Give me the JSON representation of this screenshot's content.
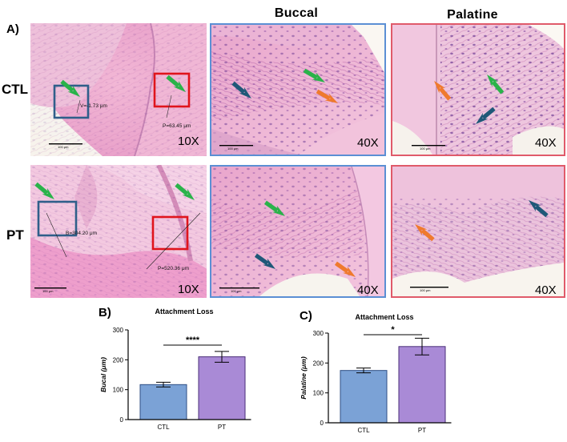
{
  "figure": {
    "panel_a_label": "A)",
    "panel_b_label": "B)",
    "panel_c_label": "C)",
    "col_titles": [
      "Buccal",
      "Palatine"
    ],
    "row_labels": [
      "CTL",
      "PT"
    ],
    "tiles": {
      "ctl_overview": {
        "magnification": "10X",
        "scale_text": "100 μm",
        "measure_v": "V=-1.73 μm",
        "measure_p": "P=63.45 μm"
      },
      "ctl_buccal": {
        "magnification": "40X",
        "scale_text": "100 μm"
      },
      "ctl_palatine": {
        "magnification": "40X",
        "scale_text": "100 μm"
      },
      "pt_overview": {
        "magnification": "10X",
        "scale_text": "100 μm",
        "measure_b": "B=304.20 μm",
        "measure_p": "P=520.36 μm"
      },
      "pt_buccal": {
        "magnification": "40X",
        "scale_text": "100 μm"
      },
      "pt_palatine": {
        "magnification": "40X",
        "scale_text": "100 μm"
      }
    },
    "colors": {
      "blue_box": "#2f5f8a",
      "red_box": "#e0141c",
      "green_arrow": "#2ab34a",
      "blue_arrow": "#1f5878",
      "orange_arrow": "#ef7a2e",
      "ctl_bar": "#7ba2d6",
      "pt_bar": "#a98ad6"
    }
  },
  "chart_data": [
    {
      "type": "bar",
      "title": "Attachment Loss",
      "ylabel": "Bucal (μm)",
      "categories": [
        "CTL",
        "PT"
      ],
      "values": [
        117,
        210
      ],
      "errors": [
        8,
        18
      ],
      "ylim": [
        0,
        300
      ],
      "yticks": [
        0,
        100,
        200,
        300
      ],
      "significance": "****"
    },
    {
      "type": "bar",
      "title": "Attachment Loss",
      "ylabel": "Palatine (μm)",
      "categories": [
        "CTL",
        "PT"
      ],
      "values": [
        175,
        255
      ],
      "errors": [
        8,
        28
      ],
      "ylim": [
        0,
        300
      ],
      "yticks": [
        0,
        100,
        200,
        300
      ],
      "significance": "*"
    }
  ]
}
